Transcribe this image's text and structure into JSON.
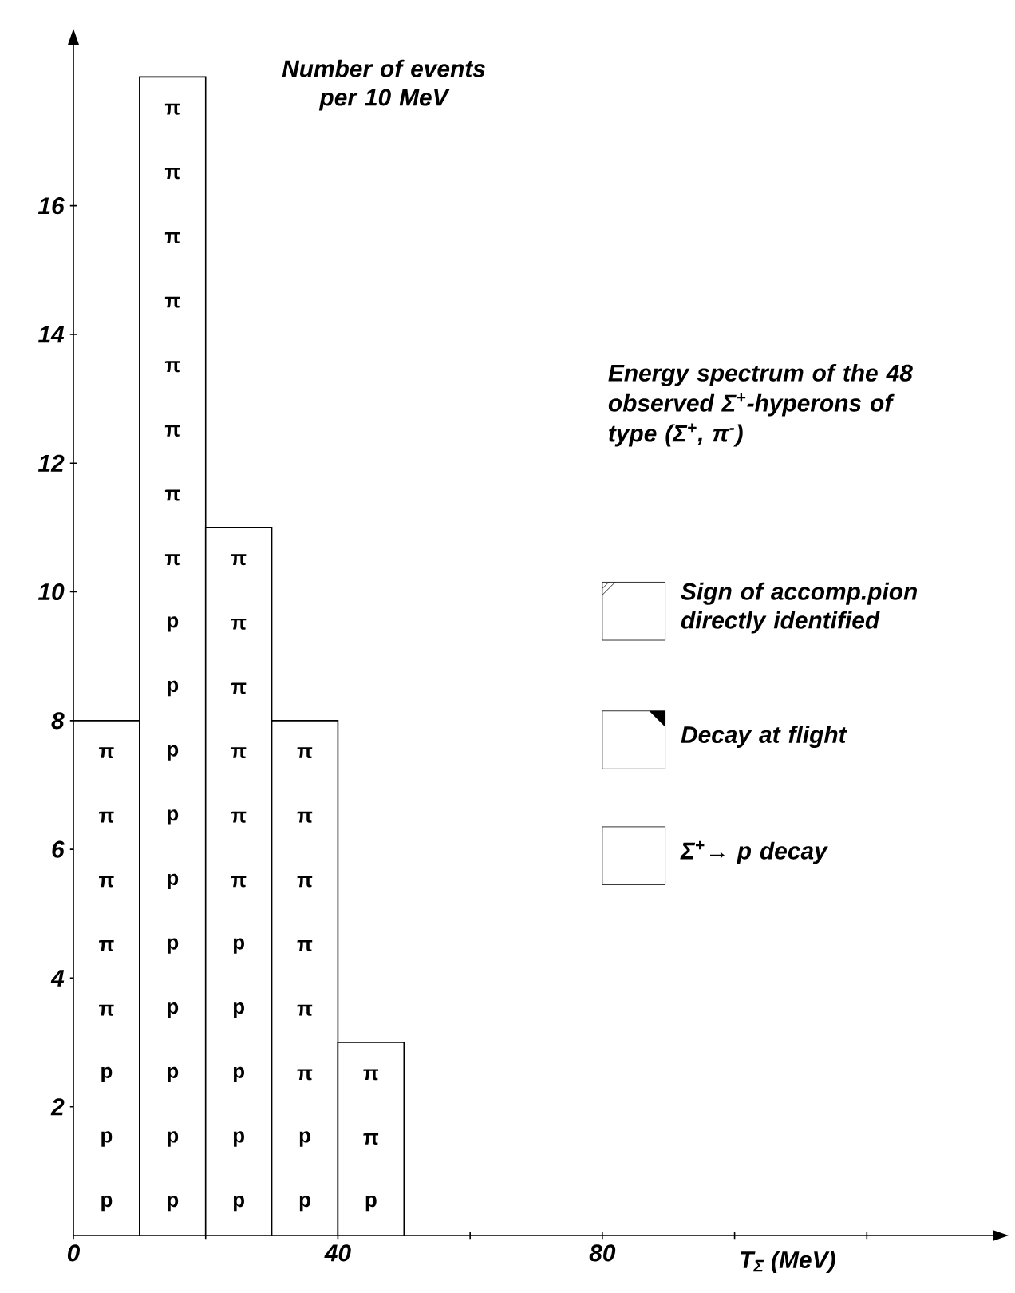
{
  "chart_data": {
    "type": "histogram",
    "xlabel": "T$_{Σ}$ (MeV)",
    "ylabel": "Number of events per 10 MeV",
    "bins": [
      0,
      10,
      20,
      30,
      40,
      50
    ],
    "values": [
      8,
      18,
      11,
      8,
      3
    ],
    "color": "#ffffff",
    "xlim": [
      0,
      140
    ],
    "ylim": [
      0,
      18.6
    ],
    "xticks": [
      0,
      {
        "value": 20,
        "label": null
      },
      40,
      {
        "value": 60,
        "label": null
      },
      80,
      {
        "value": 100,
        "label": null
      },
      {
        "value": 120,
        "label": null
      }
    ],
    "yticks": [
      2,
      4,
      6,
      8,
      10,
      12,
      14,
      16
    ],
    "grid": false,
    "annotations": [
      "Energy spectrum of the 48 observed Σ$^{+}$-hyperons of type (Σ$^{+}$, π$^{-}$)",
      "Sign of accomp.pion directly identified",
      "Decay at flight",
      "Σ$^{+}$→ p decay",
      "p",
      "p",
      "p",
      "π",
      "π",
      "π",
      "π",
      "π",
      "p",
      "p",
      "p",
      "p",
      "p",
      "p",
      "p",
      "p",
      "p",
      "p",
      "π",
      "π",
      "π",
      "π",
      "π",
      "π",
      "π",
      "π",
      "p",
      "p",
      "p",
      "p",
      "p",
      "π",
      "π",
      "π",
      "π",
      "π",
      "π",
      "p",
      "p",
      "π",
      "π",
      "π",
      "π",
      "π",
      "π",
      "p",
      "π",
      "π"
    ]
  }
}
